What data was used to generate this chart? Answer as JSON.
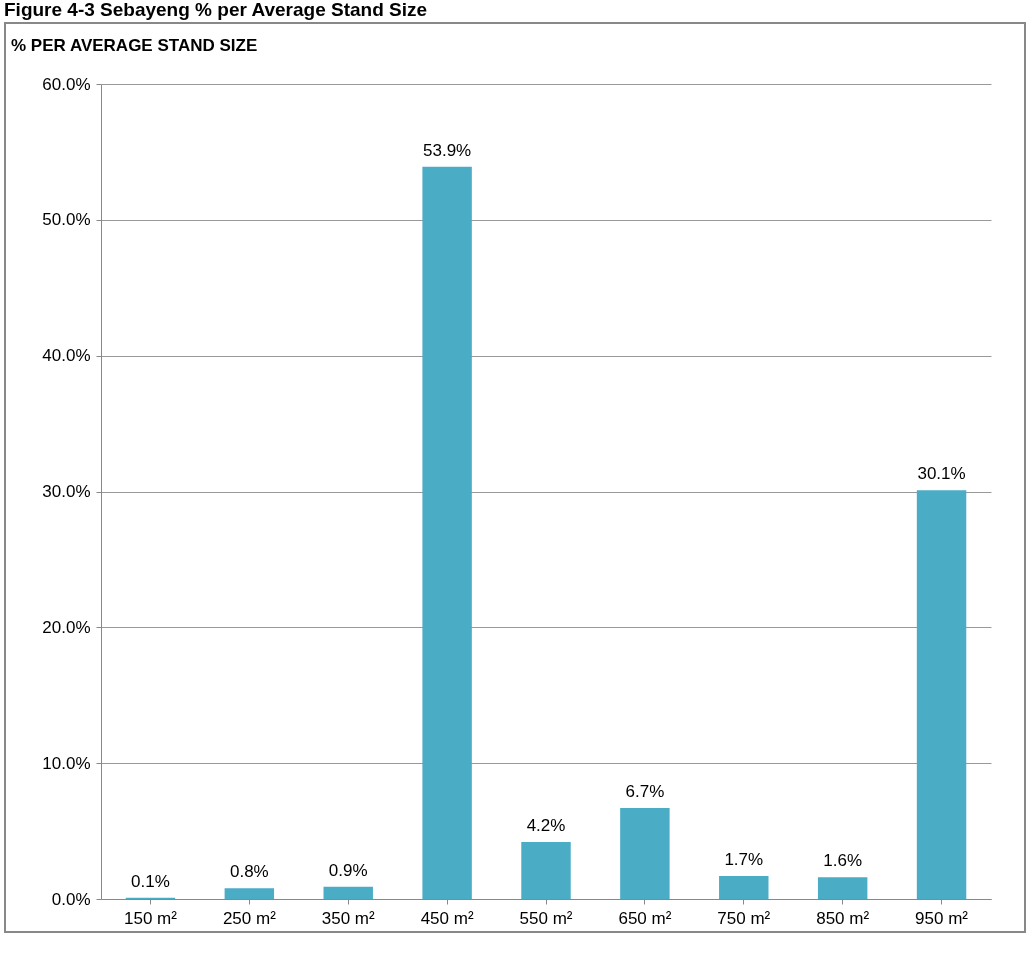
{
  "chart_data": {
    "type": "bar",
    "title": "Figure 4-3 Sebayeng % per Average Stand Size",
    "subtitle": "% PER AVERAGE STAND SIZE",
    "categories": [
      "150 m²",
      "250 m²",
      "350 m²",
      "450 m²",
      "550 m²",
      "650 m²",
      "750 m²",
      "850 m²",
      "950 m²"
    ],
    "values": [
      0.1,
      0.8,
      0.9,
      53.9,
      4.2,
      6.7,
      1.7,
      1.6,
      30.1
    ],
    "value_labels": [
      "0.1%",
      "0.8%",
      "0.9%",
      "53.9%",
      "4.2%",
      "6.7%",
      "1.7%",
      "1.6%",
      "30.1%"
    ],
    "color": "#4bacc6",
    "ylim": [
      0,
      60
    ],
    "yticks": [
      {
        "value": 0,
        "label": "0.0%"
      },
      {
        "value": 10,
        "label": "10.0%"
      },
      {
        "value": 20,
        "label": "20.0%"
      },
      {
        "value": 30,
        "label": "30.0%"
      },
      {
        "value": 40,
        "label": "40.0%"
      },
      {
        "value": 50,
        "label": "50.0%"
      },
      {
        "value": 60,
        "label": "60.0%"
      }
    ],
    "grid": "y"
  }
}
